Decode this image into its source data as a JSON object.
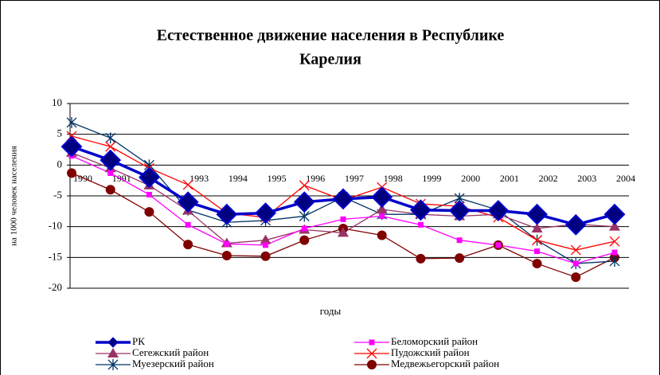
{
  "chart_data": {
    "type": "line",
    "title": [
      "Естественное движение населения в Республике",
      "Карелия"
    ],
    "x_label": "годы",
    "y_label": "на 1000 человек населения",
    "categories": [
      "1990",
      "1991",
      null,
      "1993",
      "1994",
      "1995",
      "1996",
      "1997",
      "1998",
      "1999",
      "2000",
      "2001",
      "2002",
      "2003",
      "2004"
    ],
    "ylim": [
      -20,
      10
    ],
    "yticks": [
      -20,
      -15,
      -10,
      -5,
      0,
      5,
      10
    ],
    "grid": true,
    "series": [
      {
        "name": "РК",
        "color": "#0000cc",
        "marker": "diamond",
        "values": [
          3,
          0.8,
          -2,
          -6,
          -8,
          -7.8,
          -6,
          -5.5,
          -5.2,
          -7.3,
          -7.4,
          -7.4,
          -8,
          -9.7,
          -8
        ]
      },
      {
        "name": "Беломорский район",
        "color": "#ff00ff",
        "marker": "square",
        "values": [
          1.5,
          -1.3,
          -4.8,
          -9.7,
          -12.8,
          -13,
          -10.3,
          -8.8,
          -8.3,
          -9.7,
          -12.2,
          -13,
          -14,
          -16,
          -14.2
        ]
      },
      {
        "name": "Сегежский район",
        "color": "#993366",
        "marker": "triangle",
        "values": [
          2,
          -0.5,
          -3.3,
          -7.4,
          -12.7,
          -12.2,
          -10.5,
          -11,
          -7.2,
          -8,
          -8.3,
          -8,
          -10.3,
          -9.6,
          -10
        ]
      },
      {
        "name": "Пудожский район",
        "color": "#ff0000",
        "marker": "x",
        "values": [
          4.7,
          3,
          -0.5,
          -3.2,
          -7.8,
          -8.5,
          -3.3,
          -5.7,
          -3.6,
          -6.3,
          -6.7,
          -8.5,
          -12.2,
          -13.8,
          -12.4
        ]
      },
      {
        "name": "Муезерский район",
        "color": "#003366",
        "marker": "star",
        "values": [
          6.9,
          4.4,
          0,
          -7.3,
          -9.3,
          -9,
          -8.3,
          -5.2,
          -8,
          -8,
          -5.4,
          -7.3,
          -12.2,
          -16,
          -15.6
        ]
      },
      {
        "name": "Медвежьегорский район",
        "color": "#800000",
        "marker": "circle",
        "values": [
          -1.3,
          -4,
          -7.6,
          -12.9,
          -14.7,
          -14.8,
          -12.2,
          -10.3,
          -11.4,
          -15.2,
          -15.1,
          -13,
          -16,
          -18.2,
          -15
        ]
      }
    ]
  }
}
